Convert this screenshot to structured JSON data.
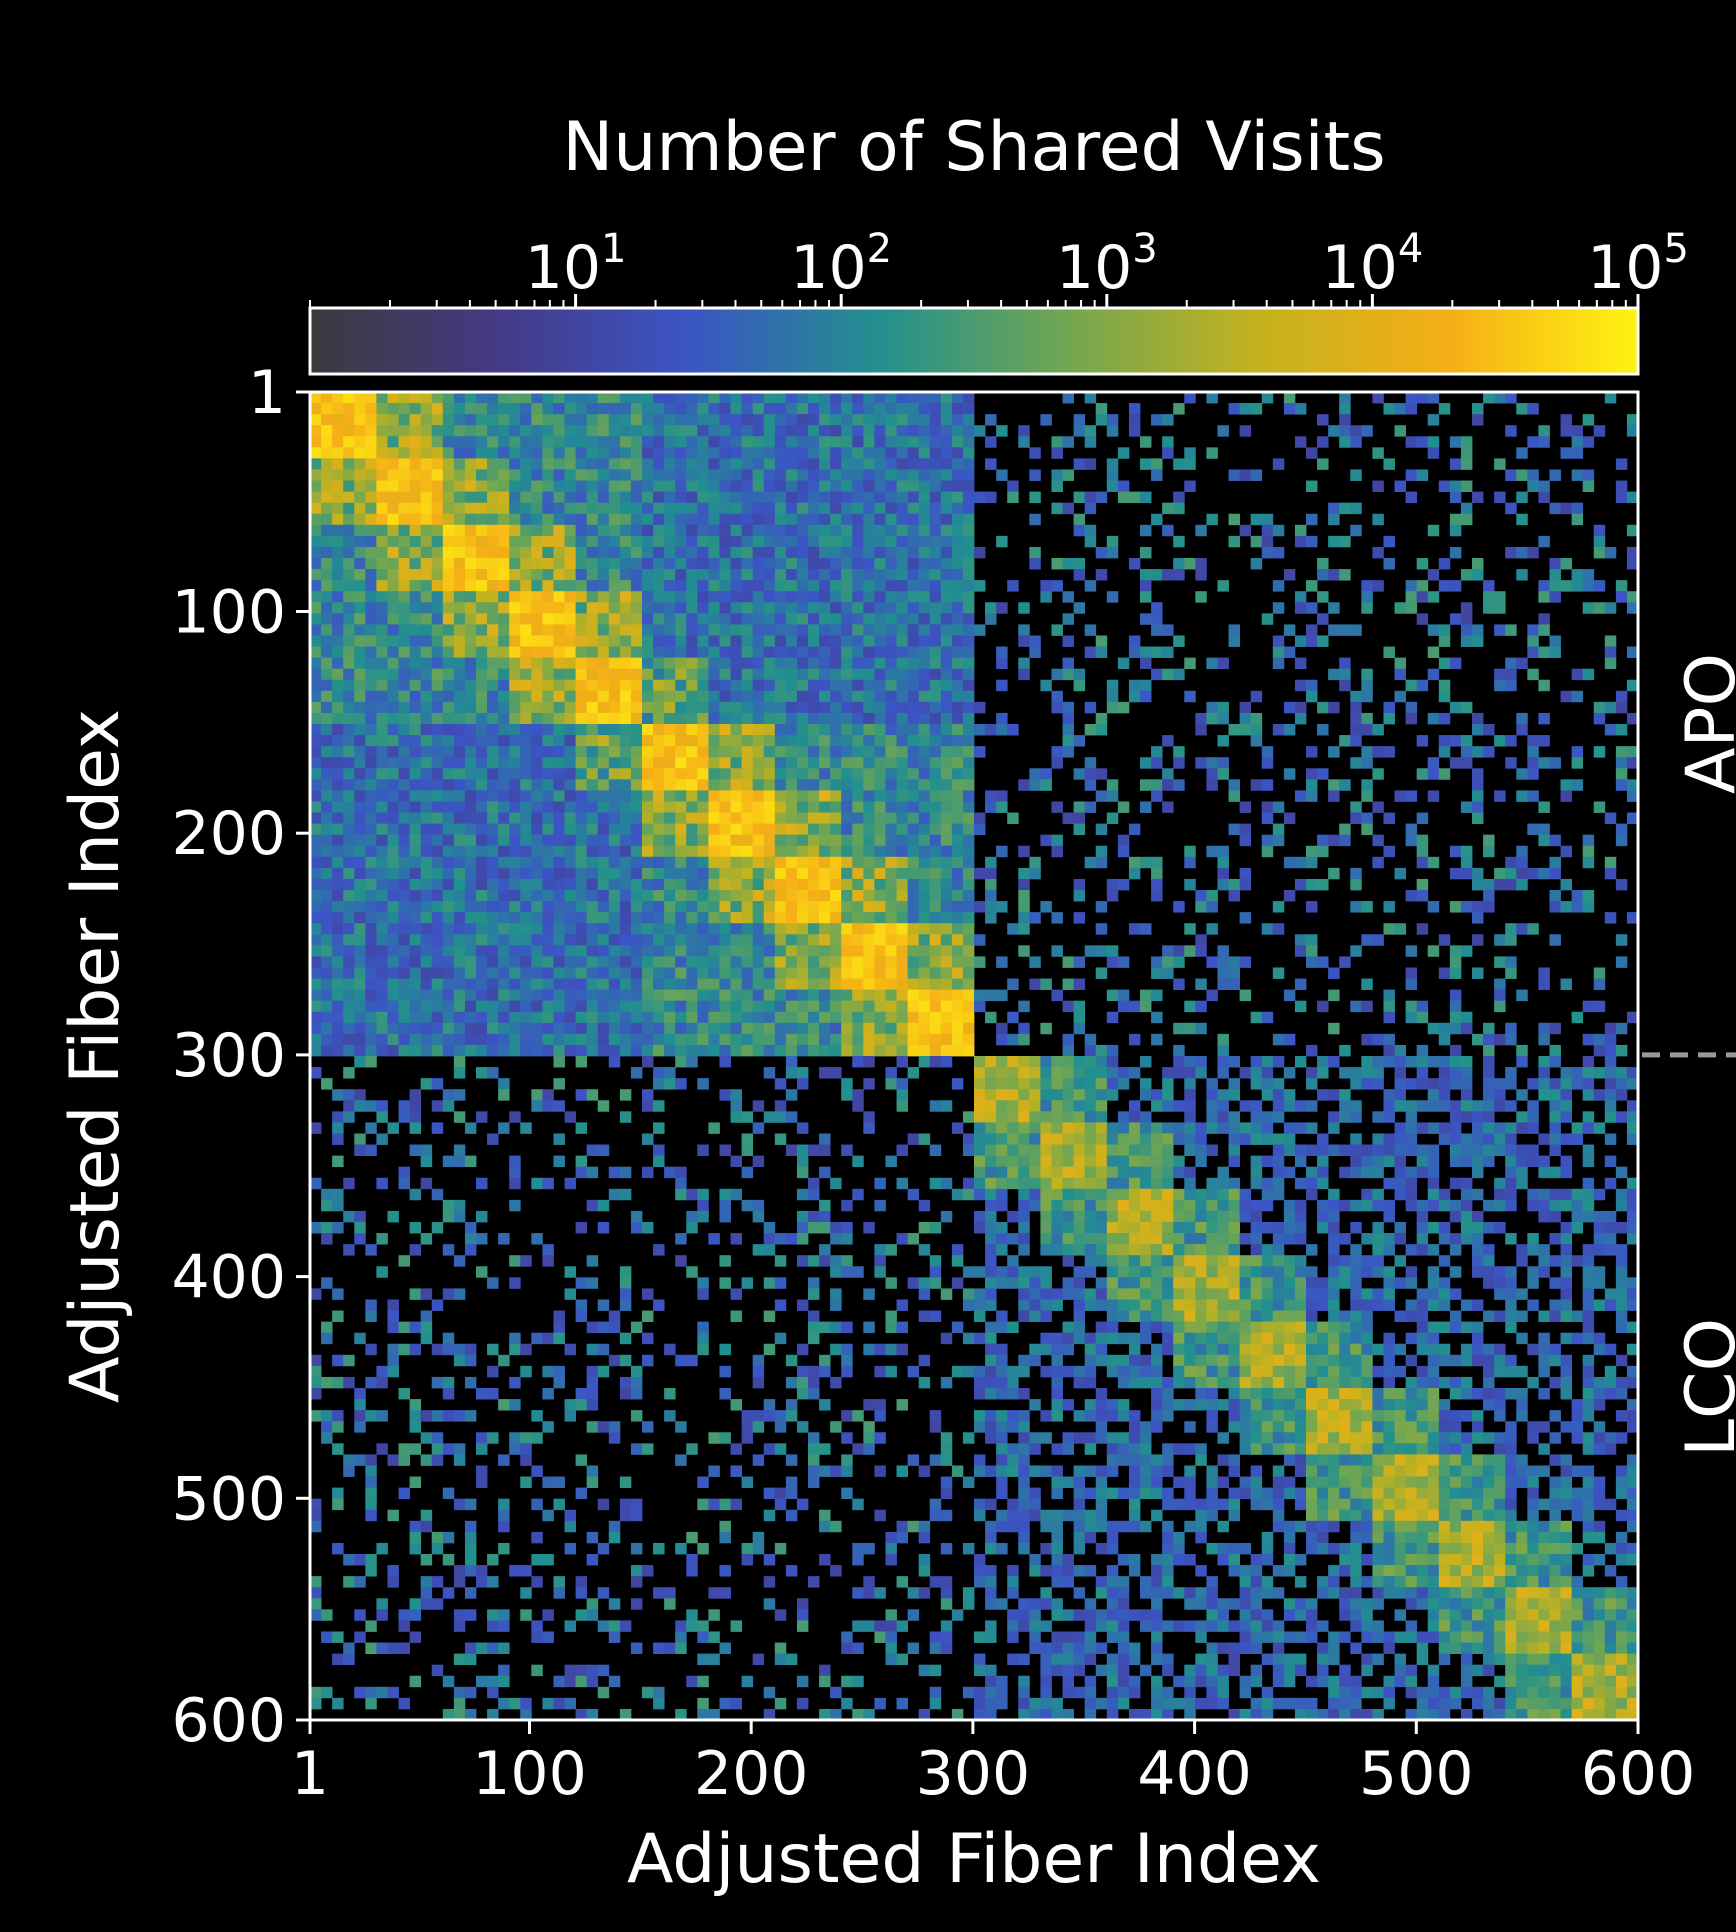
{
  "chart_data": {
    "type": "heatmap",
    "colorbar": {
      "label": "Number of Shared Visits",
      "scale": "log",
      "range": [
        1,
        100000
      ],
      "ticks": [
        {
          "base": "10",
          "exp": "1",
          "value": 10
        },
        {
          "base": "10",
          "exp": "2",
          "value": 100
        },
        {
          "base": "10",
          "exp": "3",
          "value": 1000
        },
        {
          "base": "10",
          "exp": "4",
          "value": 10000
        },
        {
          "base": "10",
          "exp": "5",
          "value": 100000
        }
      ],
      "colors": [
        "#3a3a3c",
        "#443a86",
        "#3b55c4",
        "#22908e",
        "#73a651",
        "#c4b21e",
        "#f5ae17",
        "#fef312"
      ]
    },
    "xlabel": "Adjusted Fiber Index",
    "ylabel": "Adjusted Fiber Index",
    "x_ticks": [
      "1",
      "100",
      "200",
      "300",
      "400",
      "500",
      "600"
    ],
    "y_ticks": [
      "1",
      "100",
      "200",
      "300",
      "400",
      "500",
      "600"
    ],
    "x_tick_values": [
      1,
      100,
      200,
      300,
      400,
      500,
      600
    ],
    "y_tick_values": [
      1,
      100,
      200,
      300,
      400,
      500,
      600
    ],
    "xlim": [
      1,
      600
    ],
    "ylim": [
      1,
      600
    ],
    "y_inverted": true,
    "groups": [
      {
        "label": "APO",
        "start": 1,
        "end": 300
      },
      {
        "label": "LCO",
        "start": 300,
        "end": 600
      }
    ],
    "group_boundary": 300,
    "diagonal_blocks": {
      "APO": [
        [
          1,
          30
        ],
        [
          30,
          60
        ],
        [
          60,
          90
        ],
        [
          90,
          120
        ],
        [
          120,
          150
        ],
        [
          150,
          180
        ],
        [
          180,
          210
        ],
        [
          210,
          240
        ],
        [
          240,
          270
        ],
        [
          270,
          300
        ]
      ],
      "LCO": [
        [
          300,
          330
        ],
        [
          330,
          360
        ],
        [
          360,
          390
        ],
        [
          390,
          420
        ],
        [
          420,
          450
        ],
        [
          450,
          480
        ],
        [
          480,
          510
        ],
        [
          510,
          540
        ],
        [
          540,
          570
        ],
        [
          570,
          600
        ]
      ]
    }
  }
}
